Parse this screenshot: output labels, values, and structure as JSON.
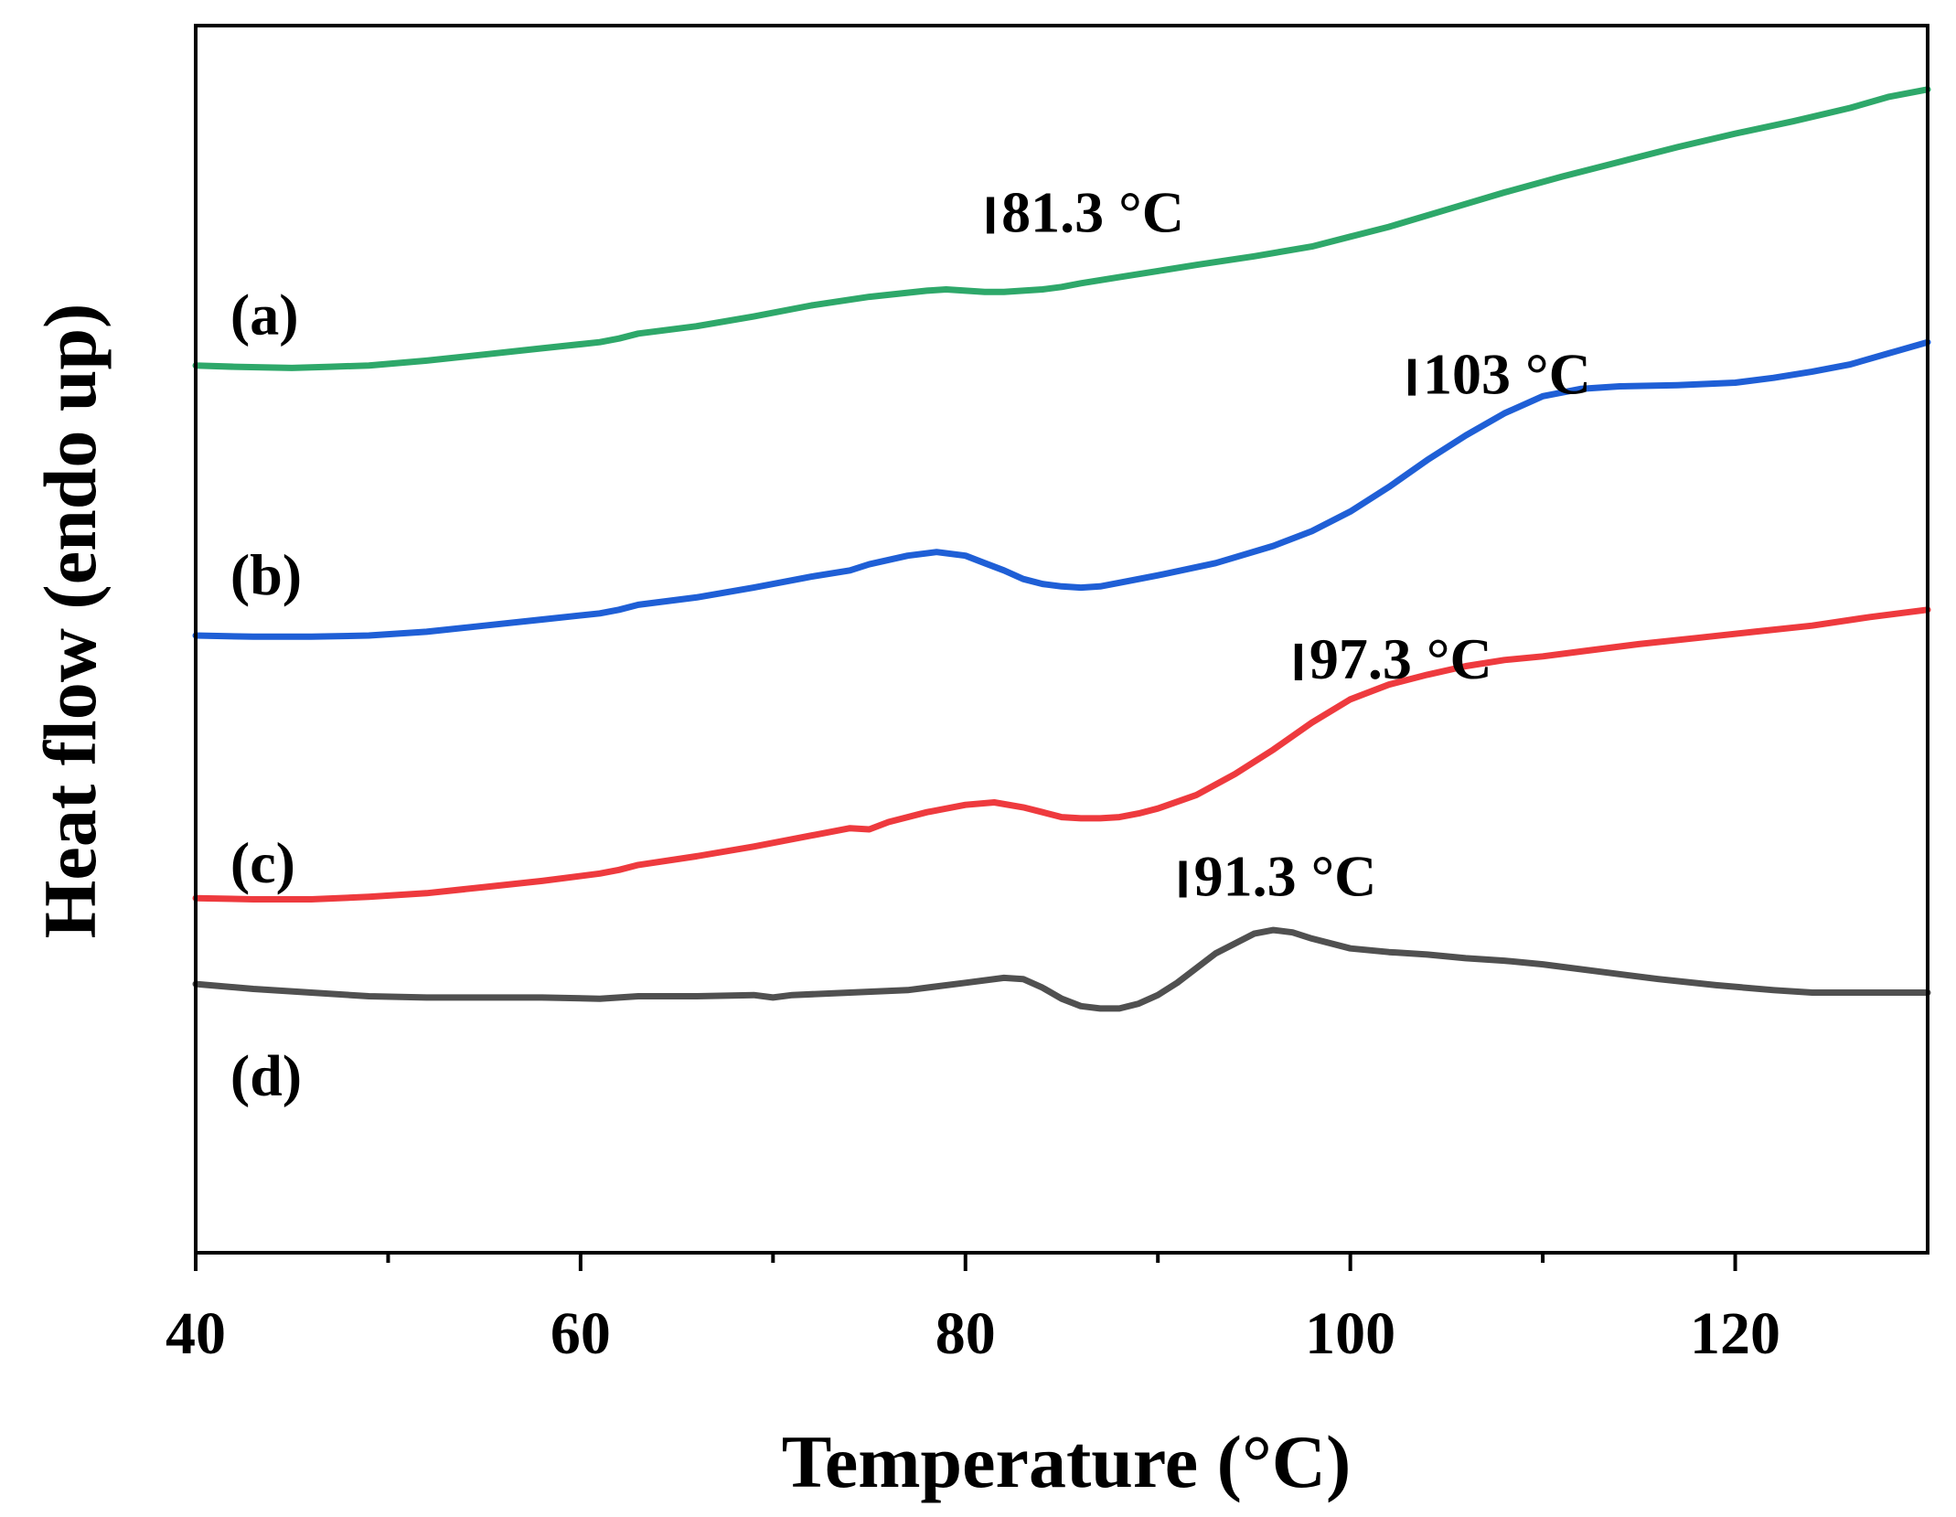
{
  "chart_data": {
    "type": "line",
    "title": "",
    "xlabel": "Temperature (°C)",
    "ylabel": "Heat flow (endo up)",
    "xlim": [
      40,
      130
    ],
    "ylim": [
      0,
      100
    ],
    "xticks_major": [
      40,
      60,
      80,
      100,
      120
    ],
    "xticks_minor": [
      50,
      70,
      90,
      110
    ],
    "yticks": [],
    "grid": false,
    "legend": "none",
    "colors": {
      "a": "#2ea86a",
      "b": "#1f5fd6",
      "c": "#ee3a3e",
      "d": "#505050",
      "axis": "#000000"
    },
    "series": [
      {
        "name": "(a)",
        "color_key": "a",
        "label_at": [
          41.8,
          76.5
        ],
        "x": [
          40,
          42,
          45,
          47,
          49,
          52,
          55,
          58,
          61,
          62,
          63,
          66,
          69,
          72,
          75,
          78,
          79,
          80,
          81,
          82,
          83,
          84,
          85,
          86,
          88,
          90,
          92,
          95,
          98,
          100,
          102,
          105,
          108,
          111,
          114,
          117,
          120,
          123,
          126,
          128,
          130
        ],
        "y": [
          72.3,
          72.2,
          72.1,
          72.2,
          72.3,
          72.7,
          73.2,
          73.7,
          74.2,
          74.5,
          74.9,
          75.5,
          76.3,
          77.2,
          77.9,
          78.4,
          78.5,
          78.4,
          78.3,
          78.3,
          78.4,
          78.5,
          78.7,
          79.0,
          79.5,
          80.0,
          80.5,
          81.2,
          82.0,
          82.8,
          83.6,
          85.0,
          86.4,
          87.7,
          88.9,
          90.1,
          91.2,
          92.2,
          93.3,
          94.2,
          94.8
        ]
      },
      {
        "name": "(b)",
        "color_key": "b",
        "label_at": [
          41.8,
          55.3
        ],
        "x": [
          40,
          43,
          46,
          49,
          52,
          55,
          58,
          61,
          62,
          63,
          66,
          69,
          72,
          74,
          75,
          77,
          78.5,
          80,
          81,
          82,
          83,
          84,
          85,
          86,
          87,
          88,
          90,
          93,
          96,
          98,
          100,
          102,
          104,
          106,
          108,
          110,
          112,
          114,
          117,
          120,
          122,
          124,
          126,
          128,
          130
        ],
        "y": [
          50.3,
          50.2,
          50.2,
          50.3,
          50.6,
          51.1,
          51.6,
          52.1,
          52.4,
          52.8,
          53.4,
          54.2,
          55.1,
          55.6,
          56.1,
          56.8,
          57.1,
          56.8,
          56.2,
          55.6,
          54.9,
          54.5,
          54.3,
          54.2,
          54.3,
          54.6,
          55.2,
          56.2,
          57.6,
          58.8,
          60.4,
          62.4,
          64.6,
          66.6,
          68.4,
          69.8,
          70.4,
          70.6,
          70.7,
          70.9,
          71.3,
          71.8,
          72.4,
          73.3,
          74.2
        ]
      },
      {
        "name": "(c)",
        "color_key": "c",
        "label_at": [
          41.8,
          31.8
        ],
        "x": [
          40,
          43,
          46,
          49,
          52,
          55,
          58,
          61,
          62,
          63,
          66,
          69,
          72,
          74,
          75,
          76,
          78,
          80,
          81.5,
          83,
          84,
          85,
          86,
          87,
          88,
          89,
          90,
          92,
          94,
          96,
          98,
          100,
          102,
          104,
          106,
          108,
          110,
          112,
          115,
          118,
          121,
          124,
          127,
          130
        ],
        "y": [
          28.9,
          28.8,
          28.8,
          29.0,
          29.3,
          29.8,
          30.3,
          30.9,
          31.2,
          31.6,
          32.3,
          33.1,
          34.0,
          34.6,
          34.5,
          35.1,
          35.9,
          36.5,
          36.7,
          36.3,
          35.9,
          35.5,
          35.4,
          35.4,
          35.5,
          35.8,
          36.2,
          37.3,
          39.0,
          41.0,
          43.2,
          45.1,
          46.3,
          47.1,
          47.8,
          48.3,
          48.6,
          49.0,
          49.6,
          50.1,
          50.6,
          51.1,
          51.8,
          52.4
        ]
      },
      {
        "name": "(d)",
        "color_key": "d",
        "label_at": [
          41.8,
          14.5
        ],
        "x": [
          40,
          43,
          46,
          49,
          52,
          55,
          58,
          61,
          62,
          63,
          66,
          69,
          70,
          71,
          74,
          77,
          80,
          82,
          83,
          84,
          85,
          86,
          87,
          88,
          89,
          90,
          91,
          93,
          95,
          96,
          97,
          98,
          100,
          102,
          104,
          106,
          108,
          110,
          113,
          116,
          119,
          122,
          124,
          126,
          128,
          130
        ],
        "y": [
          21.9,
          21.5,
          21.2,
          20.9,
          20.8,
          20.8,
          20.8,
          20.7,
          20.8,
          20.9,
          20.9,
          21.0,
          20.8,
          21.0,
          21.2,
          21.4,
          22.0,
          22.4,
          22.3,
          21.6,
          20.7,
          20.1,
          19.9,
          19.9,
          20.3,
          21.0,
          22.0,
          24.4,
          26.0,
          26.3,
          26.1,
          25.6,
          24.8,
          24.5,
          24.3,
          24.0,
          23.8,
          23.5,
          22.9,
          22.3,
          21.8,
          21.4,
          21.2,
          21.2,
          21.2,
          21.2
        ]
      }
    ],
    "annotations": [
      {
        "text": "81.3 °C",
        "series": "(a)",
        "marker_x": 81.3,
        "marker_y": 83.2
      },
      {
        "text": "103 °C",
        "series": "(b)",
        "marker_x": 103.2,
        "marker_y": 70.0
      },
      {
        "text": "97.3 °C",
        "series": "(c)",
        "marker_x": 97.3,
        "marker_y": 46.8
      },
      {
        "text": "91.3 °C",
        "series": "(d)",
        "marker_x": 91.3,
        "marker_y": 29.1
      }
    ]
  }
}
